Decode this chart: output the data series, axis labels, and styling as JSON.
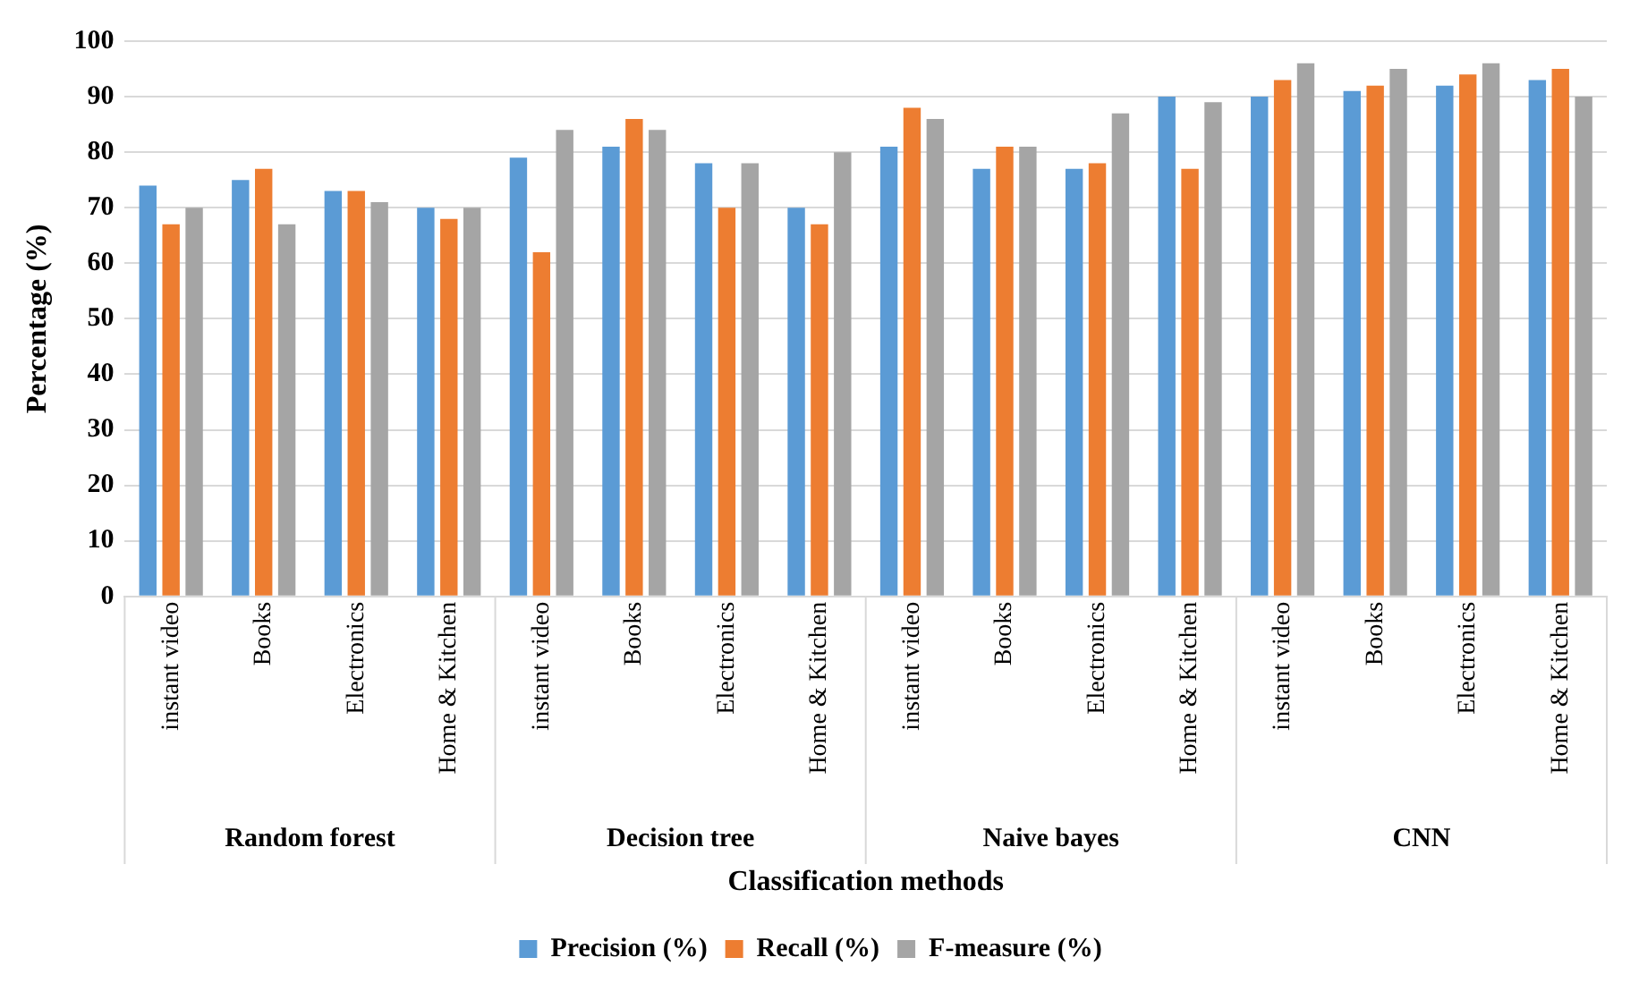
{
  "chart_data": {
    "type": "bar",
    "xlabel": "Classification methods",
    "ylabel": "Percentage (%)",
    "categories": [
      "instant video",
      "Books",
      "Electronics",
      "Home & Kitchen",
      "instant video",
      "Books",
      "Electronics",
      "Home & Kitchen",
      "instant video",
      "Books",
      "Electronics",
      "Home & Kitchen",
      "instant video",
      "Books",
      "Electronics",
      "Home & Kitchen"
    ],
    "annotations": [
      "Random forest",
      "Decision tree",
      "Naive bayes",
      "CNN"
    ],
    "series": [
      {
        "name": "Precision (%)",
        "color": "#5b9bd5",
        "values": [
          74,
          75,
          73,
          70,
          79,
          81,
          78,
          70,
          81,
          77,
          77,
          90,
          90,
          91,
          92,
          93
        ]
      },
      {
        "name": "Recall (%)",
        "color": "#ed7d31",
        "values": [
          67,
          77,
          73,
          68,
          62,
          86,
          70,
          67,
          88,
          81,
          78,
          77,
          93,
          92,
          94,
          95
        ]
      },
      {
        "name": "F-measure (%)",
        "color": "#a5a5a5",
        "values": [
          70,
          67,
          71,
          70,
          84,
          84,
          78,
          80,
          86,
          81,
          87,
          89,
          96,
          95,
          96,
          90
        ]
      }
    ],
    "ylim": [
      0,
      100
    ],
    "yticks": [
      0,
      10,
      20,
      30,
      40,
      50,
      60,
      70,
      80,
      90,
      100
    ],
    "grid": "y",
    "legend": "bottom"
  }
}
